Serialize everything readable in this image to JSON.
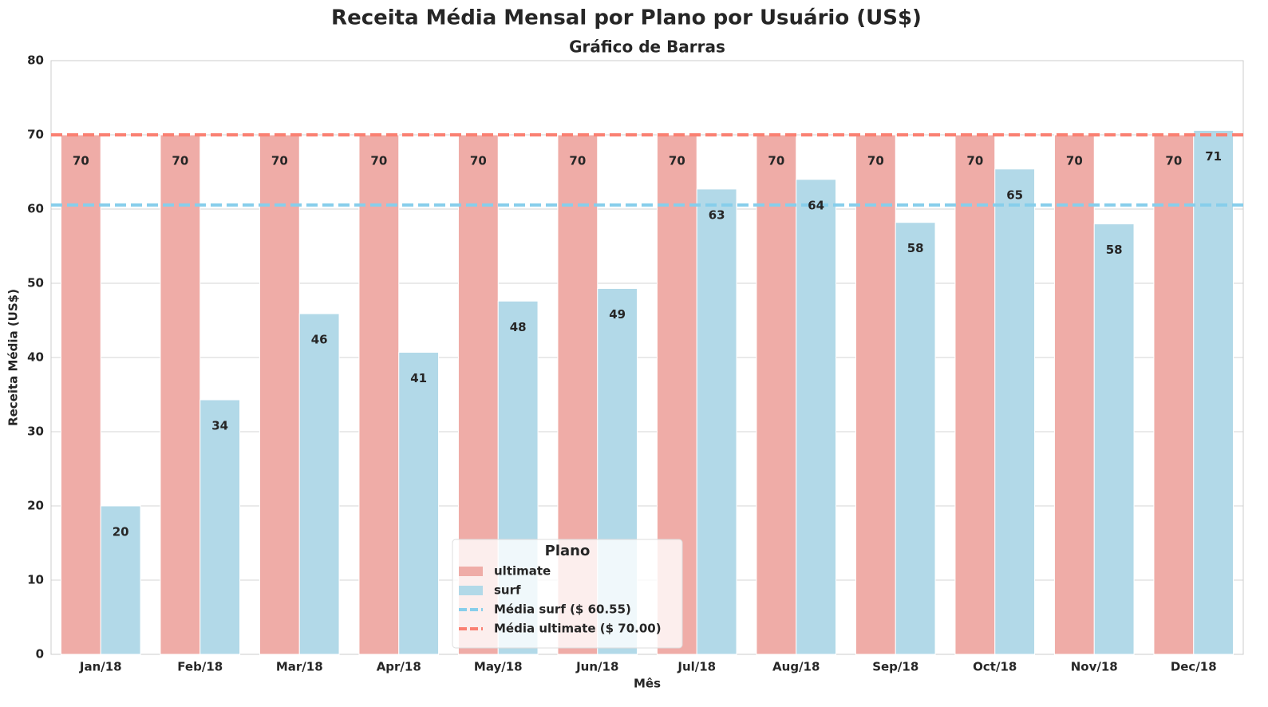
{
  "chart_data": {
    "type": "bar",
    "title": "Receita Média Mensal por Plano por Usuário (US$)",
    "subtitle": "Gráfico de Barras",
    "xlabel": "Mês",
    "ylabel": "Receita Média (US$)",
    "categories": [
      "Jan/18",
      "Feb/18",
      "Mar/18",
      "Apr/18",
      "May/18",
      "Jun/18",
      "Jul/18",
      "Aug/18",
      "Sep/18",
      "Oct/18",
      "Nov/18",
      "Dec/18"
    ],
    "series": [
      {
        "name": "ultimate",
        "color": "#efaca7",
        "values": [
          70,
          70,
          70,
          70,
          70,
          70,
          70,
          70,
          70,
          70,
          70,
          70
        ]
      },
      {
        "name": "surf",
        "color": "#b2d9e8",
        "values": [
          20.0,
          34.3,
          45.9,
          40.7,
          47.6,
          49.3,
          62.7,
          64.0,
          58.2,
          65.4,
          58.0,
          70.6
        ],
        "value_labels": [
          "20",
          "34",
          "46",
          "41",
          "48",
          "49",
          "63",
          "64",
          "58",
          "65",
          "58",
          "71"
        ]
      }
    ],
    "hlines": [
      {
        "label": "Média surf ($ 60.55)",
        "value": 60.55,
        "color": "#87ceeb"
      },
      {
        "label": "Média ultimate ($ 70.00)",
        "value": 70.0,
        "color": "#fa8072"
      }
    ],
    "ylim": [
      0,
      80
    ],
    "yticks": [
      0,
      10,
      20,
      30,
      40,
      50,
      60,
      70,
      80
    ],
    "grid": true,
    "legend_title": "Plano",
    "legend": "lower center"
  }
}
